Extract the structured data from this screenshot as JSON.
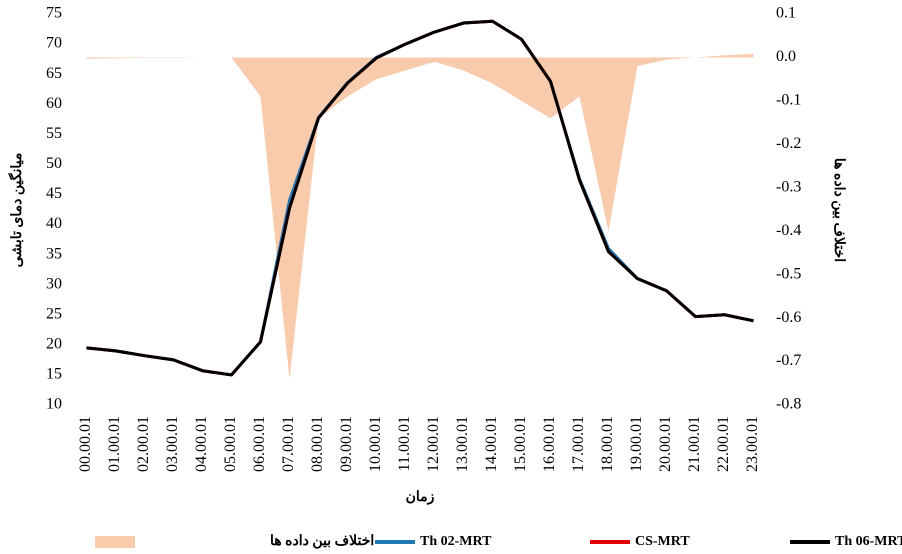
{
  "chart_data": {
    "type": "line",
    "x_label": "زمان",
    "y_label": "میانگین دمای تابشی",
    "y2_label": "اختلاف بین داده ها",
    "categories": [
      "00.00.01",
      "01.00.01",
      "02.00.01",
      "03.00.01",
      "04.00.01",
      "05.00.01",
      "06.00.01",
      "07.00.01",
      "08.00.01",
      "09.00.01",
      "10.00.01",
      "11.00.01",
      "12.00.01",
      "13.00.01",
      "14.00.01",
      "15.00.01",
      "16.00.01",
      "17.00.01",
      "18.00.01",
      "19.00.01",
      "20.00.01",
      "21.00.01",
      "22.00.01",
      "23.00.01"
    ],
    "ylim": [
      10,
      75
    ],
    "yticks": [
      10,
      15,
      20,
      25,
      30,
      35,
      40,
      45,
      50,
      55,
      60,
      65,
      70,
      75
    ],
    "y2lim": [
      -0.8,
      0.1
    ],
    "y2ticks": [
      -0.8,
      -0.7,
      -0.6,
      -0.5,
      -0.4,
      -0.3,
      -0.2,
      -0.1,
      {
        "value": 0,
        "label": "0.0"
      },
      0.1
    ],
    "series": [
      {
        "name": "اختلاف بین داده ها",
        "type": "area",
        "axis": "y2",
        "color": "#f8cbad",
        "values": [
          -0.003,
          -0.002,
          -0.001,
          -0.001,
          0,
          0,
          -0.09,
          -0.74,
          -0.14,
          -0.09,
          -0.05,
          -0.03,
          -0.01,
          -0.03,
          -0.06,
          -0.1,
          -0.14,
          -0.09,
          -0.4,
          -0.02,
          -0.005,
          0,
          0.005,
          0.008
        ]
      },
      {
        "name": "Th 02-MRT",
        "color": "#1f77b4",
        "values": [
          19.5,
          19.0,
          18.2,
          17.5,
          15.7,
          15.0,
          20.5,
          44.0,
          57.8,
          63.6,
          67.8,
          70.0,
          72.0,
          73.5,
          73.8,
          70.8,
          63.8,
          47.6,
          36.0,
          31.0,
          29.0,
          24.7,
          25.0,
          24.0
        ]
      },
      {
        "name": "CS-MRT",
        "color": "#e00000",
        "values": [
          19.5,
          19.0,
          18.2,
          17.5,
          15.7,
          15.0,
          20.5,
          42.8,
          57.7,
          63.5,
          67.7,
          70.0,
          72.0,
          73.5,
          73.8,
          70.8,
          63.8,
          47.4,
          35.5,
          31.0,
          29.0,
          24.7,
          25.0,
          24.0
        ]
      },
      {
        "name": "Th 06-MRT",
        "color": "#000000",
        "values": [
          19.5,
          19.0,
          18.2,
          17.5,
          15.7,
          15.0,
          20.5,
          42.7,
          57.7,
          63.5,
          67.7,
          70.0,
          72.0,
          73.5,
          73.8,
          70.8,
          63.8,
          47.4,
          35.5,
          31.0,
          29.0,
          24.7,
          25.0,
          24.0
        ]
      }
    ]
  }
}
